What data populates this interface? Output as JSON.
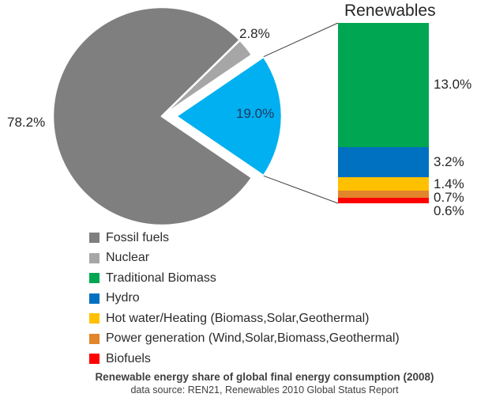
{
  "chart_data": {
    "type": "pie",
    "title": "Renewable energy share of global final energy consumption (2008)",
    "source_note": "data source: REN21, Renewables 2010 Global Status Report",
    "pie": {
      "slices": [
        {
          "name": "Fossil fuels",
          "value": 78.2,
          "label": "78.2%",
          "color": "#7F7F7F",
          "exploded": false
        },
        {
          "name": "Nuclear",
          "value": 2.8,
          "label": "2.8%",
          "color": "#A6A6A6",
          "exploded": false
        },
        {
          "name": "Renewables",
          "value": 19.0,
          "label": "19.0%",
          "color": "#00B0F0",
          "exploded": true
        }
      ]
    },
    "bar": {
      "title": "Renewables",
      "segments": [
        {
          "name": "Traditional Biomass",
          "value": 13.0,
          "label": "13.0%",
          "color": "#00A651"
        },
        {
          "name": "Hydro",
          "value": 3.2,
          "label": "3.2%",
          "color": "#0070C0"
        },
        {
          "name": "Hot water/Heating (Biomass,Solar,Geothermal)",
          "value": 1.4,
          "label": "1.4%",
          "color": "#FFC000"
        },
        {
          "name": "Power generation (Wind,Solar,Biomass,Geothermal)",
          "value": 0.7,
          "label": "0.7%",
          "color": "#E2852B"
        },
        {
          "name": "Biofuels",
          "value": 0.6,
          "label": "0.6%",
          "color": "#FF0000"
        }
      ]
    },
    "legend": [
      {
        "label": "Fossil fuels",
        "color": "#7F7F7F"
      },
      {
        "label": "Nuclear",
        "color": "#A6A6A6"
      },
      {
        "label": "Traditional Biomass",
        "color": "#00A651"
      },
      {
        "label": "Hydro",
        "color": "#0070C0"
      },
      {
        "label": "Hot water/Heating (Biomass,Solar,Geothermal)",
        "color": "#FFC000"
      },
      {
        "label": "Power generation (Wind,Solar,Biomass,Geothermal)",
        "color": "#E2852B"
      },
      {
        "label": "Biofuels",
        "color": "#FF0000"
      }
    ],
    "caption": "Renewable energy share of global final energy consumption (2008)",
    "source": "data source: REN21, Renewables 2010 Global Status Report"
  }
}
